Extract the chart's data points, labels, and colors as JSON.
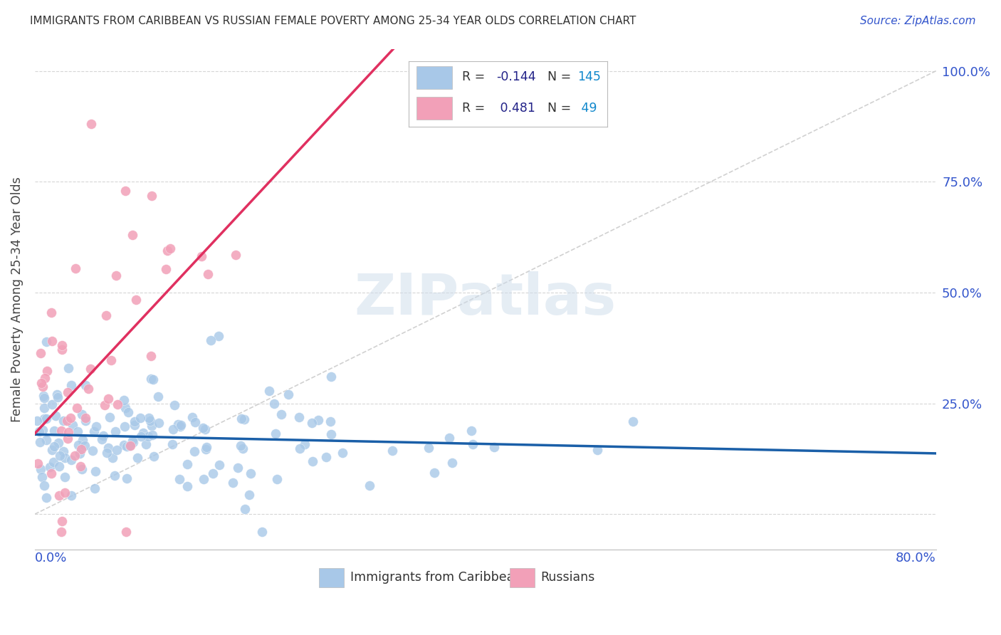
{
  "title": "IMMIGRANTS FROM CARIBBEAN VS RUSSIAN FEMALE POVERTY AMONG 25-34 YEAR OLDS CORRELATION CHART",
  "source": "Source: ZipAtlas.com",
  "ylabel": "Female Poverty Among 25-34 Year Olds",
  "xmin": 0.0,
  "xmax": 0.8,
  "ymin": -0.08,
  "ymax": 1.05,
  "caribbean_color": "#a8c8e8",
  "russian_color": "#f2a0b8",
  "caribbean_line_color": "#1a5fa8",
  "russian_line_color": "#e03060",
  "diagonal_line_color": "#cccccc",
  "R_caribbean": -0.144,
  "N_caribbean": 145,
  "R_russian": 0.481,
  "N_russian": 49,
  "legend_text_color": "#222288",
  "legend_N_color": "#1188cc",
  "watermark_text": "ZIPatlas",
  "background_color": "#ffffff",
  "grid_color": "#cccccc",
  "title_color": "#333333",
  "axis_label_color": "#3355cc",
  "source_color": "#3355cc"
}
